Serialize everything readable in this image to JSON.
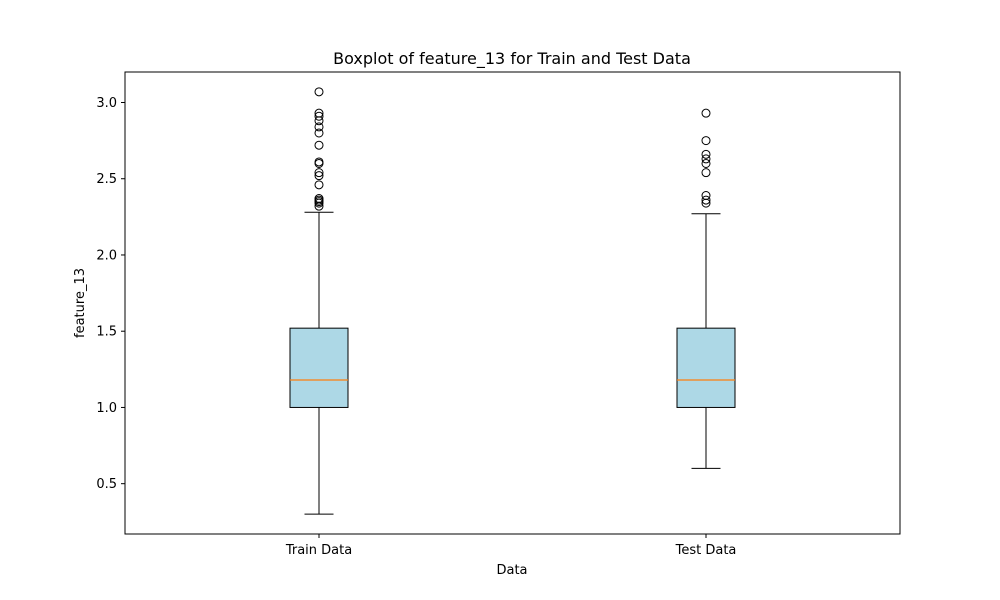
{
  "chart_data": {
    "type": "boxplot",
    "title": "Boxplot of feature_13 for Train and Test Data",
    "xlabel": "Data",
    "ylabel": "feature_13",
    "ylim": [
      0.17,
      3.2
    ],
    "yticks": [
      0.5,
      1.0,
      1.5,
      2.0,
      2.5,
      3.0
    ],
    "ytick_labels": [
      "0.5",
      "1.0",
      "1.5",
      "2.0",
      "2.5",
      "3.0"
    ],
    "grid": false,
    "colors": {
      "box_fill": "#add8e6",
      "median": "#ff7f0e",
      "line": "#000000"
    },
    "categories": [
      "Train Data",
      "Test Data"
    ],
    "boxes": [
      {
        "name": "Train Data",
        "whisker_low": 0.3,
        "q1": 1.0,
        "median": 1.18,
        "q3": 1.52,
        "whisker_high": 2.28,
        "outliers": [
          2.32,
          2.34,
          2.35,
          2.36,
          2.37,
          2.46,
          2.52,
          2.54,
          2.6,
          2.61,
          2.72,
          2.8,
          2.84,
          2.88,
          2.91,
          2.93,
          3.07
        ]
      },
      {
        "name": "Test Data",
        "whisker_low": 0.6,
        "q1": 1.0,
        "median": 1.18,
        "q3": 1.52,
        "whisker_high": 2.27,
        "outliers": [
          2.34,
          2.36,
          2.39,
          2.54,
          2.6,
          2.63,
          2.66,
          2.75,
          2.93
        ]
      }
    ]
  }
}
